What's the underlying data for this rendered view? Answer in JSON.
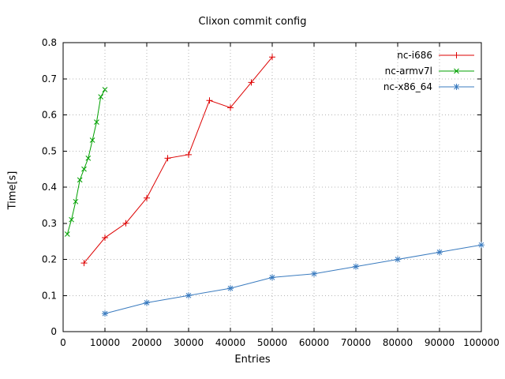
{
  "window": {
    "title": "Clixon commit config"
  },
  "chart_data": {
    "type": "line",
    "title": "Clixon commit config",
    "xlabel": "Entries",
    "ylabel": "Time[s]",
    "xlim": [
      0,
      100000
    ],
    "ylim": [
      0,
      0.8
    ],
    "xticks": [
      0,
      10000,
      20000,
      30000,
      40000,
      50000,
      60000,
      70000,
      80000,
      90000,
      100000
    ],
    "yticks": [
      0,
      0.1,
      0.2,
      0.3,
      0.4,
      0.5,
      0.6,
      0.7,
      0.8
    ],
    "grid": true,
    "grid_style": "dotted",
    "grid_color": "#b4b4b4",
    "border_color": "#000000",
    "legend_position": "top-right-inside",
    "series": [
      {
        "name": "nc-i686",
        "color": "#dd0000",
        "marker": "plus",
        "x": [
          5000,
          10000,
          15000,
          20000,
          25000,
          30000,
          35000,
          40000,
          45000,
          50000
        ],
        "y": [
          0.19,
          0.26,
          0.3,
          0.37,
          0.48,
          0.49,
          0.64,
          0.62,
          0.69,
          0.76
        ]
      },
      {
        "name": "nc-armv7l",
        "color": "#00a000",
        "marker": "cross",
        "x": [
          1000,
          2000,
          3000,
          4000,
          5000,
          6000,
          7000,
          8000,
          9000,
          10000
        ],
        "y": [
          0.27,
          0.31,
          0.36,
          0.42,
          0.45,
          0.48,
          0.53,
          0.58,
          0.65,
          0.67
        ]
      },
      {
        "name": "nc-x86_64",
        "color": "#3a7bbf",
        "marker": "star",
        "x": [
          10000,
          20000,
          30000,
          40000,
          50000,
          60000,
          70000,
          80000,
          90000,
          100000
        ],
        "y": [
          0.05,
          0.08,
          0.1,
          0.12,
          0.15,
          0.16,
          0.18,
          0.2,
          0.22,
          0.24
        ]
      }
    ]
  }
}
